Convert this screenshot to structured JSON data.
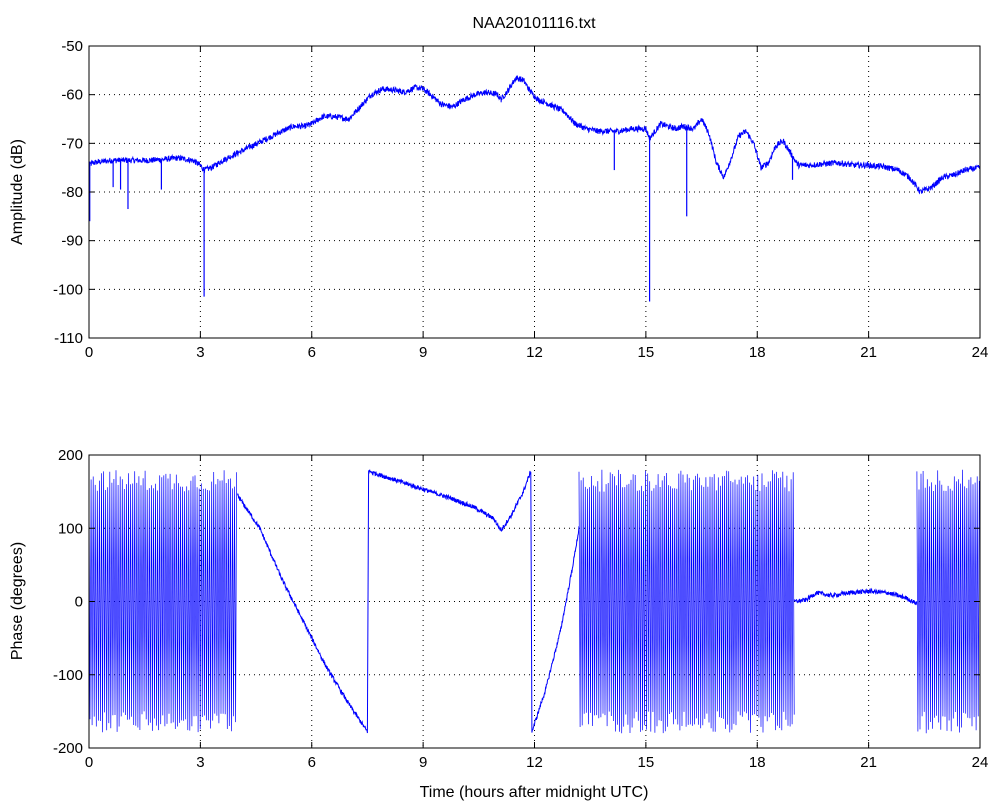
{
  "figure": {
    "background": "#ffffff",
    "line_color": "#0000ff",
    "axis_color": "#000000",
    "grid_color": "#000000"
  },
  "chart_data": [
    {
      "type": "line",
      "title": "NAA20101116.txt",
      "xlabel": "",
      "ylabel": "Amplitude (dB)",
      "xlim": [
        0,
        24
      ],
      "ylim": [
        -110,
        -50
      ],
      "xticks": [
        0,
        3,
        6,
        9,
        12,
        15,
        18,
        21,
        24
      ],
      "yticks": [
        -110,
        -100,
        -90,
        -80,
        -70,
        -60,
        -50
      ],
      "grid": true,
      "series": [
        {
          "color": "#0000ff",
          "noise": 0.6,
          "x": [
            0,
            0.1,
            0.3,
            0.6,
            0.9,
            1.2,
            1.6,
            2.0,
            2.4,
            2.8,
            3.0,
            3.1,
            3.3,
            3.6,
            4.0,
            4.4,
            4.8,
            5.2,
            5.5,
            5.8,
            6.0,
            6.3,
            6.6,
            7.0,
            7.3,
            7.6,
            7.9,
            8.2,
            8.5,
            8.8,
            9.0,
            9.2,
            9.5,
            9.8,
            10.1,
            10.4,
            10.7,
            11.0,
            11.1,
            11.3,
            11.5,
            11.7,
            11.9,
            12.1,
            12.4,
            12.8,
            13.1,
            13.4,
            13.7,
            14.0,
            14.3,
            14.6,
            15.0,
            15.1,
            15.4,
            15.8,
            16.0,
            16.3,
            16.5,
            16.7,
            16.9,
            17.1,
            17.3,
            17.5,
            17.7,
            17.9,
            18.1,
            18.3,
            18.5,
            18.7,
            18.9,
            19.1,
            19.4,
            19.8,
            20.2,
            20.6,
            21.0,
            21.4,
            21.8,
            22.1,
            22.4,
            22.7,
            23.0,
            23.3,
            23.6,
            24.0
          ],
          "values": [
            -74.5,
            -74,
            -73.8,
            -73.5,
            -73.5,
            -73.5,
            -73.5,
            -73.3,
            -73,
            -73.5,
            -74.5,
            -75.5,
            -75,
            -73.5,
            -72,
            -70.5,
            -69,
            -67.5,
            -66.5,
            -66.5,
            -66,
            -64.5,
            -64.5,
            -65,
            -62.5,
            -60,
            -58.8,
            -59,
            -59.5,
            -58.5,
            -58.8,
            -60,
            -62,
            -62.5,
            -61,
            -60,
            -59.5,
            -60,
            -61,
            -59,
            -56.5,
            -57,
            -59.5,
            -61,
            -62,
            -63.5,
            -66,
            -67,
            -67.5,
            -67.5,
            -67.5,
            -67,
            -67,
            -69,
            -66,
            -67,
            -66.5,
            -67,
            -65,
            -68,
            -74,
            -77,
            -73,
            -68.5,
            -67.5,
            -70,
            -75,
            -74,
            -70.5,
            -69.5,
            -72,
            -74.5,
            -74.5,
            -74.2,
            -74,
            -74.5,
            -74.5,
            -74.8,
            -75.5,
            -77,
            -80,
            -79,
            -77,
            -76.5,
            -75.5,
            -75
          ]
        }
      ],
      "dropouts": [
        {
          "x": 0.02,
          "min": -86
        },
        {
          "x": 0.65,
          "min": -79
        },
        {
          "x": 0.85,
          "min": -79.5
        },
        {
          "x": 1.05,
          "min": -83.5
        },
        {
          "x": 1.95,
          "min": -79.5
        },
        {
          "x": 3.1,
          "min": -101.5
        },
        {
          "x": 14.15,
          "min": -75.5
        },
        {
          "x": 15.1,
          "min": -102.5
        },
        {
          "x": 16.1,
          "min": -85
        },
        {
          "x": 18.95,
          "min": -77.5
        }
      ]
    },
    {
      "type": "line",
      "title": "",
      "xlabel": "Time (hours after midnight UTC)",
      "ylabel": "Phase (degrees)",
      "xlim": [
        0,
        24
      ],
      "ylim": [
        -200,
        200
      ],
      "xticks": [
        0,
        3,
        6,
        9,
        12,
        15,
        18,
        21,
        24
      ],
      "yticks": [
        -200,
        -100,
        0,
        100,
        200
      ],
      "grid": true,
      "series": [
        {
          "color": "#0000ff",
          "noise": 3,
          "x": [
            4.0,
            4.6,
            5.2,
            5.8,
            6.4,
            7.0,
            7.5,
            7.53,
            8.0,
            8.6,
            9.2,
            9.8,
            10.4,
            10.9,
            11.1,
            11.4,
            11.7,
            11.9,
            11.93,
            12.3,
            12.7,
            13.0,
            13.2
          ],
          "values": [
            145,
            100,
            30,
            -30,
            -90,
            -140,
            -178,
            178,
            170,
            160,
            150,
            140,
            128,
            113,
            97,
            120,
            150,
            178,
            -178,
            -120,
            -40,
            40,
            100
          ]
        },
        {
          "color": "#0000ff",
          "noise": 3,
          "x": [
            19.0,
            19.3,
            19.6,
            20.0,
            20.5,
            21.0,
            21.5,
            22.0,
            22.3
          ],
          "values": [
            0,
            2,
            12,
            8,
            12,
            14,
            12,
            5,
            -3
          ]
        }
      ],
      "wrapped_segments": [
        {
          "x_start": 0.0,
          "x_end": 4.0
        },
        {
          "x_start": 13.2,
          "x_end": 19.0
        },
        {
          "x_start": 22.3,
          "x_end": 24.0
        }
      ]
    }
  ]
}
